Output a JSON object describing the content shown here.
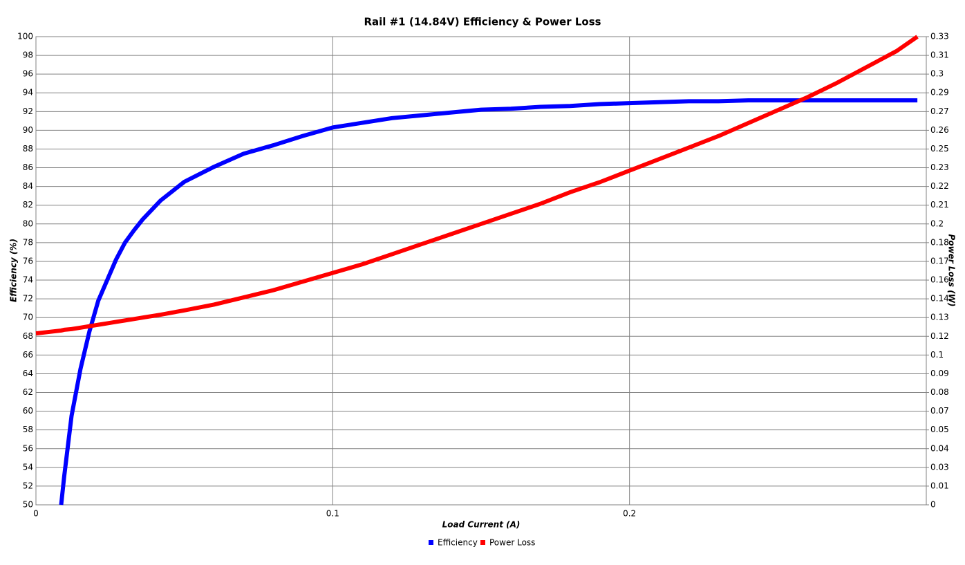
{
  "chart_data": {
    "type": "line",
    "title": "Rail #1 (14.84V) Efficiency & Power Loss",
    "xlabel": "Load Current (A)",
    "ylabel": "Efficiency (%)",
    "y2label": "Power Loss (W)",
    "x": [
      0,
      0.0085,
      0.0095,
      0.012,
      0.015,
      0.018,
      0.021,
      0.024,
      0.027,
      0.03,
      0.033,
      0.036,
      0.042,
      0.05,
      0.06,
      0.07,
      0.08,
      0.09,
      0.1,
      0.11,
      0.12,
      0.13,
      0.14,
      0.15,
      0.16,
      0.17,
      0.18,
      0.19,
      0.2,
      0.21,
      0.22,
      0.23,
      0.24,
      0.25,
      0.26,
      0.27,
      0.28,
      0.29,
      0.297
    ],
    "series": [
      {
        "name": "Efficiency",
        "color": "#0000ff",
        "values": [
          null,
          50,
          53,
          59.5,
          64.5,
          68.5,
          71.8,
          74,
          76.2,
          78,
          79.3,
          80.5,
          82.5,
          84.5,
          86.1,
          87.5,
          88.4,
          89.4,
          90.3,
          90.8,
          91.3,
          91.6,
          91.9,
          92.2,
          92.3,
          92.5,
          92.6,
          92.8,
          92.9,
          93.0,
          93.1,
          93.1,
          93.2,
          93.2,
          93.2,
          93.2,
          93.2,
          93.2,
          93.2
        ]
      },
      {
        "name": "Power Loss",
        "color": "#ff0000",
        "axis": "y2",
        "values": [
          0.119,
          0.121,
          0.1215,
          0.122,
          0.123,
          0.124,
          0.125,
          0.126,
          0.127,
          0.128,
          0.129,
          0.13,
          0.132,
          0.135,
          0.139,
          0.144,
          0.149,
          0.155,
          0.161,
          0.167,
          0.174,
          0.181,
          0.188,
          0.195,
          0.202,
          0.209,
          0.217,
          0.224,
          0.232,
          0.24,
          0.248,
          0.256,
          0.265,
          0.274,
          0.283,
          0.293,
          0.304,
          0.315,
          0.325
        ]
      }
    ],
    "xlim": [
      0,
      0.3
    ],
    "xticks": [
      0,
      0.1,
      0.2
    ],
    "ylim": [
      50,
      100
    ],
    "yticks": [
      50,
      52,
      54,
      56,
      58,
      60,
      62,
      64,
      66,
      68,
      70,
      72,
      74,
      76,
      78,
      80,
      82,
      84,
      86,
      88,
      90,
      92,
      94,
      96,
      98,
      100
    ],
    "y2lim": [
      0,
      0.325
    ],
    "y2ticks": [
      0,
      {
        "value": 0.013,
        "label": "0.01"
      },
      {
        "value": 0.026,
        "label": "0.03"
      },
      {
        "value": 0.039,
        "label": "0.04"
      },
      {
        "value": 0.052,
        "label": "0.05"
      },
      {
        "value": 0.065,
        "label": "0.07"
      },
      {
        "value": 0.078,
        "label": "0.08"
      },
      {
        "value": 0.091,
        "label": "0.09"
      },
      {
        "value": 0.104,
        "label": "0.1"
      },
      {
        "value": 0.117,
        "label": "0.12"
      },
      0.13,
      {
        "value": 0.143,
        "label": "0.14"
      },
      {
        "value": 0.156,
        "label": "0.16"
      },
      {
        "value": 0.169,
        "label": "0.17"
      },
      {
        "value": 0.182,
        "label": "0.18"
      },
      {
        "value": 0.195,
        "label": "0.2"
      },
      {
        "value": 0.208,
        "label": "0.21"
      },
      {
        "value": 0.221,
        "label": "0.22"
      },
      {
        "value": 0.234,
        "label": "0.23"
      },
      {
        "value": 0.247,
        "label": "0.25"
      },
      0.26,
      {
        "value": 0.273,
        "label": "0.27"
      },
      {
        "value": 0.286,
        "label": "0.29"
      },
      {
        "value": 0.299,
        "label": "0.3"
      },
      {
        "value": 0.312,
        "label": "0.31"
      },
      {
        "value": 0.325,
        "label": "0.33"
      }
    ],
    "grid": true,
    "legend": "bottom"
  }
}
